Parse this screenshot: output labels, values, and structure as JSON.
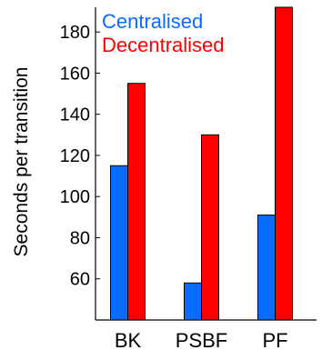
{
  "chart_data": {
    "type": "bar",
    "title": "",
    "xlabel": "",
    "ylabel": "Seconds per transition",
    "categories": [
      "BK",
      "PSBF",
      "PF"
    ],
    "series": [
      {
        "name": "Centralised",
        "color": "#0a6cff",
        "values": [
          115,
          58,
          91
        ]
      },
      {
        "name": "Decentralised",
        "color": "#ff0000",
        "values": [
          155,
          130,
          192
        ]
      }
    ],
    "ylim": [
      40,
      192
    ],
    "yticks": [
      60,
      80,
      100,
      120,
      140,
      160,
      180
    ],
    "grid": false,
    "legend_position": "top-left",
    "bar_border_color": "#000000"
  }
}
